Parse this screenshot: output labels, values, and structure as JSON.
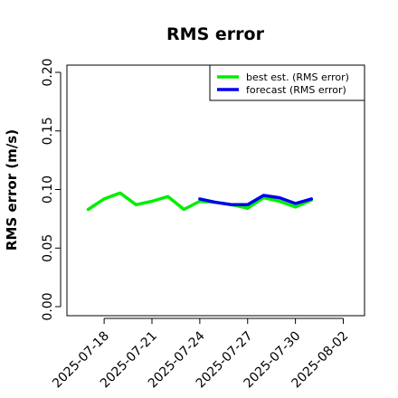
{
  "chart_data": {
    "type": "line",
    "title": "RMS error",
    "xlabel": "",
    "ylabel": "RMS error (m/s)",
    "ylim": [
      0,
      0.21
    ],
    "xlim": [
      "2025-07-15T16:00",
      "2025-08-03T08:00"
    ],
    "yticks": [
      0.0,
      0.05,
      0.1,
      0.15,
      0.2
    ],
    "ytick_labels": [
      "0.00",
      "0.05",
      "0.10",
      "0.15",
      "0.20"
    ],
    "xticks": [
      "2025-07-18",
      "2025-07-21",
      "2025-07-24",
      "2025-07-27",
      "2025-07-30",
      "2025-08-02"
    ],
    "xtick_labels": [
      "2025-07-18",
      "2025-07-21",
      "2025-07-24",
      "2025-07-27",
      "2025-07-30",
      "2025-08-02"
    ],
    "xtick_colors": [
      "#000000",
      "#000000",
      "#228B22",
      "#000000",
      "#000000",
      "#000000"
    ],
    "grid": false,
    "legend_position": "top-right",
    "series": [
      {
        "name": "best est. (RMS error)",
        "color": "#00ee00",
        "x": [
          "2025-07-17",
          "2025-07-18",
          "2025-07-19",
          "2025-07-20",
          "2025-07-21",
          "2025-07-22",
          "2025-07-23",
          "2025-07-24",
          "2025-07-25",
          "2025-07-26",
          "2025-07-27",
          "2025-07-28",
          "2025-07-29",
          "2025-07-30",
          "2025-07-31"
        ],
        "values": [
          0.083,
          0.092,
          0.097,
          0.087,
          0.09,
          0.094,
          0.083,
          0.09,
          0.089,
          0.087,
          0.084,
          0.093,
          0.09,
          0.085,
          0.091
        ]
      },
      {
        "name": "forecast (RMS error)",
        "color": "#0000ee",
        "x": [
          "2025-07-24",
          "2025-07-25",
          "2025-07-26",
          "2025-07-27",
          "2025-07-28",
          "2025-07-29",
          "2025-07-30",
          "2025-07-31"
        ],
        "values": [
          0.092,
          0.089,
          0.087,
          0.087,
          0.095,
          0.093,
          0.088,
          0.092
        ]
      }
    ]
  }
}
